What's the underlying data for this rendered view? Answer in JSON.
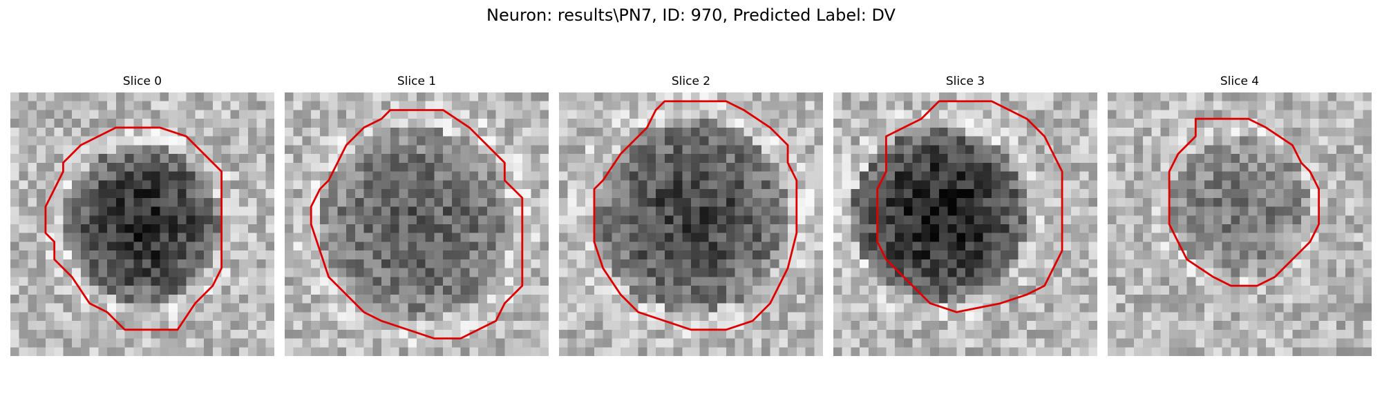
{
  "figure": {
    "title": "Neuron: results\\PN7, ID: 970, Predicted Label: DV"
  },
  "panels": [
    {
      "title": "Slice 0",
      "contour_color": "#e00000"
    },
    {
      "title": "Slice 1",
      "contour_color": "#e00000"
    },
    {
      "title": "Slice 2",
      "contour_color": "#e00000"
    },
    {
      "title": "Slice 3",
      "contour_color": "#e00000"
    },
    {
      "title": "Slice 4",
      "contour_color": "#e00000"
    }
  ]
}
